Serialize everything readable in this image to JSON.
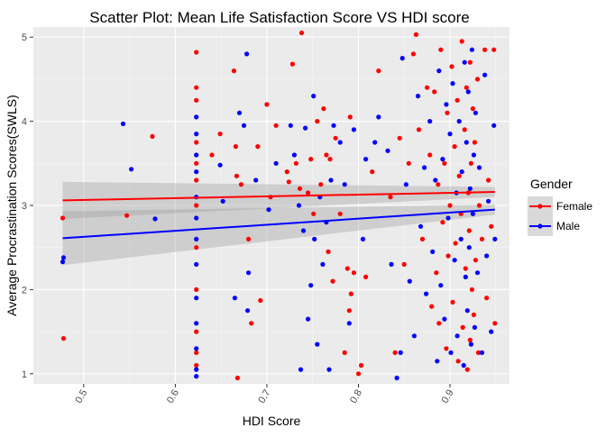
{
  "chart_data": {
    "type": "scatter",
    "title": "Scatter Plot: Mean Life Satisfaction Score VS HDI score",
    "xlabel": "HDI Score",
    "ylabel": "Average Procrastination Scores(SWLS)",
    "xlim": [
      0.445,
      0.965
    ],
    "ylim": [
      0.88,
      5.12
    ],
    "x_ticks": [
      0.5,
      0.6,
      0.7,
      0.8,
      0.9
    ],
    "x_tick_labels": [
      "0.5",
      "0.6",
      "0.7",
      "0.8",
      "0.9"
    ],
    "y_ticks": [
      1,
      2,
      3,
      4,
      5
    ],
    "y_tick_labels": [
      "1",
      "2",
      "3",
      "4",
      "5"
    ],
    "grid": true,
    "legend": {
      "title": "Gender",
      "position": "right",
      "entries": [
        "Female",
        "Male"
      ]
    },
    "colors": {
      "Female": "#ff0000",
      "Male": "#0000ff",
      "band": "#999999",
      "panel": "#ebebeb"
    },
    "series": [
      {
        "name": "Female",
        "color": "#ff0000",
        "trend": {
          "x": [
            0.477,
            0.949
          ],
          "y": [
            3.06,
            3.16
          ]
        },
        "band": {
          "x": [
            0.477,
            0.949
          ],
          "upper": [
            3.28,
            3.22
          ],
          "lower": [
            2.84,
            3.1
          ]
        },
        "points": [
          [
            0.477,
            2.85
          ],
          [
            0.478,
            1.42
          ],
          [
            0.547,
            2.88
          ],
          [
            0.575,
            3.82
          ],
          [
            0.623,
            4.82
          ],
          [
            0.623,
            4.4
          ],
          [
            0.623,
            4.25
          ],
          [
            0.623,
            3.75
          ],
          [
            0.623,
            3.5
          ],
          [
            0.623,
            3.3
          ],
          [
            0.623,
            3.0
          ],
          [
            0.623,
            2.5
          ],
          [
            0.623,
            2.0
          ],
          [
            0.623,
            1.5
          ],
          [
            0.623,
            1.25
          ],
          [
            0.623,
            1.1
          ],
          [
            0.64,
            3.6
          ],
          [
            0.649,
            3.85
          ],
          [
            0.664,
            4.6
          ],
          [
            0.666,
            3.7
          ],
          [
            0.667,
            3.35
          ],
          [
            0.668,
            0.95
          ],
          [
            0.672,
            3.25
          ],
          [
            0.68,
            2.6
          ],
          [
            0.683,
            1.6
          ],
          [
            0.69,
            3.7
          ],
          [
            0.693,
            1.87
          ],
          [
            0.7,
            4.2
          ],
          [
            0.704,
            3.1
          ],
          [
            0.71,
            3.95
          ],
          [
            0.722,
            3.4
          ],
          [
            0.724,
            3.28
          ],
          [
            0.728,
            4.68
          ],
          [
            0.732,
            3.5
          ],
          [
            0.736,
            3.2
          ],
          [
            0.738,
            5.05
          ],
          [
            0.745,
            3.15
          ],
          [
            0.748,
            3.55
          ],
          [
            0.751,
            2.9
          ],
          [
            0.755,
            4.0
          ],
          [
            0.759,
            3.25
          ],
          [
            0.762,
            4.15
          ],
          [
            0.765,
            3.6
          ],
          [
            0.767,
            2.45
          ],
          [
            0.769,
            3.55
          ],
          [
            0.772,
            2.1
          ],
          [
            0.775,
            3.8
          ],
          [
            0.78,
            2.9
          ],
          [
            0.785,
            1.25
          ],
          [
            0.788,
            2.25
          ],
          [
            0.79,
            1.75
          ],
          [
            0.791,
            4.05
          ],
          [
            0.792,
            1.95
          ],
          [
            0.795,
            2.2
          ],
          [
            0.8,
            1.0
          ],
          [
            0.803,
            1.1
          ],
          [
            0.808,
            2.15
          ],
          [
            0.815,
            3.4
          ],
          [
            0.822,
            4.6
          ],
          [
            0.835,
            3.1
          ],
          [
            0.84,
            1.25
          ],
          [
            0.845,
            3.8
          ],
          [
            0.85,
            2.3
          ],
          [
            0.855,
            3.5
          ],
          [
            0.86,
            4.8
          ],
          [
            0.863,
            5.03
          ],
          [
            0.866,
            3.9
          ],
          [
            0.87,
            2.6
          ],
          [
            0.875,
            4.4
          ],
          [
            0.878,
            3.6
          ],
          [
            0.88,
            1.8
          ],
          [
            0.883,
            4.35
          ],
          [
            0.885,
            2.2
          ],
          [
            0.887,
            3.25
          ],
          [
            0.888,
            1.6
          ],
          [
            0.89,
            4.85
          ],
          [
            0.892,
            2.8
          ],
          [
            0.894,
            3.5
          ],
          [
            0.896,
            1.3
          ],
          [
            0.897,
            4.1
          ],
          [
            0.898,
            2.4
          ],
          [
            0.9,
            3.0
          ],
          [
            0.902,
            4.65
          ],
          [
            0.903,
            1.85
          ],
          [
            0.905,
            3.7
          ],
          [
            0.906,
            2.55
          ],
          [
            0.908,
            4.25
          ],
          [
            0.909,
            1.15
          ],
          [
            0.91,
            3.35
          ],
          [
            0.912,
            2.9
          ],
          [
            0.913,
            4.95
          ],
          [
            0.914,
            1.55
          ],
          [
            0.916,
            3.9
          ],
          [
            0.917,
            2.25
          ],
          [
            0.918,
            4.4
          ],
          [
            0.919,
            1.05
          ],
          [
            0.92,
            3.15
          ],
          [
            0.921,
            2.7
          ],
          [
            0.922,
            4.7
          ],
          [
            0.922,
            1.4
          ],
          [
            0.923,
            3.5
          ],
          [
            0.924,
            2.0
          ],
          [
            0.925,
            4.15
          ],
          [
            0.926,
            1.7
          ],
          [
            0.927,
            3.75
          ],
          [
            0.928,
            2.35
          ],
          [
            0.93,
            4.5
          ],
          [
            0.931,
            1.25
          ],
          [
            0.932,
            3.0
          ],
          [
            0.935,
            2.6
          ],
          [
            0.938,
            4.85
          ],
          [
            0.94,
            1.9
          ],
          [
            0.942,
            3.3
          ],
          [
            0.945,
            2.75
          ],
          [
            0.948,
            4.85
          ],
          [
            0.949,
            1.6
          ]
        ]
      },
      {
        "name": "Male",
        "color": "#0000ff",
        "trend": {
          "x": [
            0.477,
            0.949
          ],
          "y": [
            2.61,
            2.95
          ]
        },
        "band": {
          "x": [
            0.477,
            0.949
          ],
          "upper": [
            2.93,
            3.01
          ],
          "lower": [
            2.29,
            2.89
          ]
        },
        "points": [
          [
            0.477,
            2.33
          ],
          [
            0.478,
            2.38
          ],
          [
            0.543,
            3.97
          ],
          [
            0.552,
            3.43
          ],
          [
            0.578,
            2.84
          ],
          [
            0.623,
            4.05
          ],
          [
            0.623,
            3.85
          ],
          [
            0.623,
            3.6
          ],
          [
            0.623,
            3.4
          ],
          [
            0.623,
            3.1
          ],
          [
            0.623,
            2.85
          ],
          [
            0.623,
            2.6
          ],
          [
            0.623,
            2.3
          ],
          [
            0.623,
            1.9
          ],
          [
            0.623,
            1.6
          ],
          [
            0.623,
            1.3
          ],
          [
            0.623,
            1.05
          ],
          [
            0.623,
            0.97
          ],
          [
            0.649,
            3.48
          ],
          [
            0.652,
            3.05
          ],
          [
            0.665,
            1.9
          ],
          [
            0.67,
            4.1
          ],
          [
            0.675,
            3.95
          ],
          [
            0.678,
            4.8
          ],
          [
            0.679,
            1.75
          ],
          [
            0.68,
            2.2
          ],
          [
            0.688,
            3.3
          ],
          [
            0.702,
            2.95
          ],
          [
            0.71,
            3.5
          ],
          [
            0.726,
            3.95
          ],
          [
            0.73,
            3.6
          ],
          [
            0.735,
            3.0
          ],
          [
            0.737,
            1.05
          ],
          [
            0.74,
            2.7
          ],
          [
            0.742,
            3.92
          ],
          [
            0.745,
            1.65
          ],
          [
            0.748,
            2.05
          ],
          [
            0.751,
            4.3
          ],
          [
            0.752,
            2.6
          ],
          [
            0.755,
            1.35
          ],
          [
            0.758,
            3.1
          ],
          [
            0.761,
            2.3
          ],
          [
            0.765,
            2.8
          ],
          [
            0.768,
            1.05
          ],
          [
            0.77,
            3.3
          ],
          [
            0.773,
            3.95
          ],
          [
            0.78,
            3.75
          ],
          [
            0.785,
            3.25
          ],
          [
            0.79,
            1.6
          ],
          [
            0.795,
            3.9
          ],
          [
            0.805,
            2.6
          ],
          [
            0.808,
            3.55
          ],
          [
            0.818,
            3.75
          ],
          [
            0.822,
            4.05
          ],
          [
            0.832,
            3.65
          ],
          [
            0.836,
            2.3
          ],
          [
            0.842,
            0.95
          ],
          [
            0.846,
            1.25
          ],
          [
            0.848,
            4.75
          ],
          [
            0.852,
            3.25
          ],
          [
            0.856,
            2.1
          ],
          [
            0.861,
            1.45
          ],
          [
            0.865,
            4.3
          ],
          [
            0.868,
            2.75
          ],
          [
            0.872,
            3.45
          ],
          [
            0.874,
            1.95
          ],
          [
            0.878,
            4.0
          ],
          [
            0.881,
            2.45
          ],
          [
            0.884,
            3.3
          ],
          [
            0.886,
            1.15
          ],
          [
            0.888,
            4.6
          ],
          [
            0.89,
            2.05
          ],
          [
            0.892,
            3.55
          ],
          [
            0.894,
            1.65
          ],
          [
            0.896,
            4.2
          ],
          [
            0.898,
            2.85
          ],
          [
            0.9,
            3.85
          ],
          [
            0.901,
            1.25
          ],
          [
            0.903,
            4.45
          ],
          [
            0.905,
            2.35
          ],
          [
            0.907,
            3.15
          ],
          [
            0.908,
            1.45
          ],
          [
            0.91,
            4.0
          ],
          [
            0.912,
            2.6
          ],
          [
            0.913,
            3.4
          ],
          [
            0.915,
            1.1
          ],
          [
            0.916,
            4.7
          ],
          [
            0.917,
            2.15
          ],
          [
            0.918,
            3.75
          ],
          [
            0.919,
            1.75
          ],
          [
            0.92,
            4.35
          ],
          [
            0.921,
            2.5
          ],
          [
            0.922,
            3.2
          ],
          [
            0.923,
            1.35
          ],
          [
            0.924,
            4.85
          ],
          [
            0.925,
            2.9
          ],
          [
            0.926,
            3.6
          ],
          [
            0.927,
            1.55
          ],
          [
            0.928,
            4.1
          ],
          [
            0.93,
            2.2
          ],
          [
            0.932,
            3.45
          ],
          [
            0.935,
            1.25
          ],
          [
            0.938,
            4.55
          ],
          [
            0.94,
            2.4
          ],
          [
            0.942,
            3.05
          ],
          [
            0.945,
            1.5
          ],
          [
            0.948,
            3.95
          ],
          [
            0.949,
            2.6
          ]
        ]
      }
    ]
  }
}
